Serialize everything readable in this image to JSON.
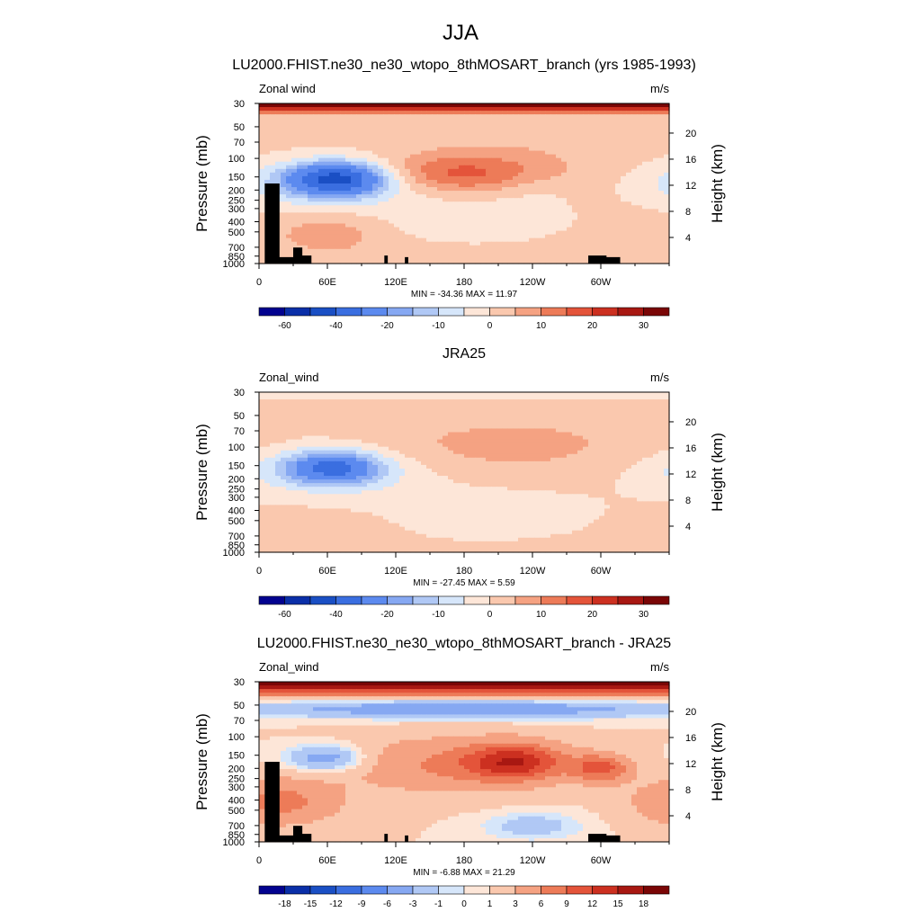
{
  "figure": {
    "title": "JJA"
  },
  "colors": {
    "absolute": [
      "#02028f",
      "#0a2fa8",
      "#1a4fc4",
      "#3a6ee0",
      "#5c8aef",
      "#86a8f2",
      "#b0c8f5",
      "#d6e6fa",
      "#fde6d8",
      "#fac8ae",
      "#f5a282",
      "#ed7b58",
      "#e4543a",
      "#cc3020",
      "#a81812",
      "#7a0606"
    ],
    "diff": [
      "#02028f",
      "#0a2fa8",
      "#1a4fc4",
      "#3a6ee0",
      "#5c8aef",
      "#86a8f2",
      "#b0c8f5",
      "#d6e6fa",
      "#fde6d8",
      "#fac8ae",
      "#f5a282",
      "#ed7b58",
      "#e4543a",
      "#cc3020",
      "#a81812",
      "#7a0606"
    ]
  },
  "chart_data": [
    {
      "type": "heatmap",
      "title": "LU2000.FHIST.ne30_ne30_wtopo_8thMOSART_branch (yrs 1985-1993)",
      "left_label": "Zonal wind",
      "units_label": "m/s",
      "ylabel": "Pressure (mb)",
      "right_label": "Height (km)",
      "x_ticks": [
        "0",
        "60E",
        "120E",
        "180",
        "120W",
        "60W"
      ],
      "y_ticks": [
        "30",
        "50",
        "70",
        "100",
        "150",
        "200",
        "250",
        "300",
        "400",
        "500",
        "700",
        "850",
        "1000"
      ],
      "height_ticks": [
        "20",
        "16",
        "12",
        "8",
        "4"
      ],
      "stats": "MIN = -34.36  MAX =  11.97",
      "colorbar_ticks": [
        "-60",
        "-40",
        "-20",
        "-10",
        "0",
        "10",
        "20",
        "30"
      ],
      "field": "model"
    },
    {
      "type": "heatmap",
      "title": "JRA25",
      "left_label": "Zonal_wind",
      "units_label": "m/s",
      "ylabel": "Pressure (mb)",
      "right_label": "Height (km)",
      "x_ticks": [
        "0",
        "60E",
        "120E",
        "180",
        "120W",
        "60W"
      ],
      "y_ticks": [
        "30",
        "50",
        "70",
        "100",
        "150",
        "200",
        "250",
        "300",
        "400",
        "500",
        "700",
        "850",
        "1000"
      ],
      "height_ticks": [
        "20",
        "16",
        "12",
        "8",
        "4"
      ],
      "stats": "MIN = -27.45  MAX =   5.59",
      "colorbar_ticks": [
        "-60",
        "-40",
        "-20",
        "-10",
        "0",
        "10",
        "20",
        "30"
      ],
      "field": "obs"
    },
    {
      "type": "heatmap",
      "title": "LU2000.FHIST.ne30_ne30_wtopo_8thMOSART_branch - JRA25",
      "left_label": "Zonal_wind",
      "units_label": "m/s",
      "ylabel": "Pressure (mb)",
      "right_label": "Height (km)",
      "x_ticks": [
        "0",
        "60E",
        "120E",
        "180",
        "120W",
        "60W"
      ],
      "y_ticks": [
        "30",
        "50",
        "70",
        "100",
        "150",
        "200",
        "250",
        "300",
        "400",
        "500",
        "700",
        "850",
        "1000"
      ],
      "height_ticks": [
        "20",
        "16",
        "12",
        "8",
        "4"
      ],
      "stats": "MIN =  -6.88  MAX =  21.29",
      "colorbar_ticks": [
        "-18",
        "-15",
        "-12",
        "-9",
        "-6",
        "-3",
        "-1",
        "0",
        "1",
        "3",
        "6",
        "9",
        "12",
        "15",
        "18"
      ],
      "field": "diff"
    }
  ]
}
